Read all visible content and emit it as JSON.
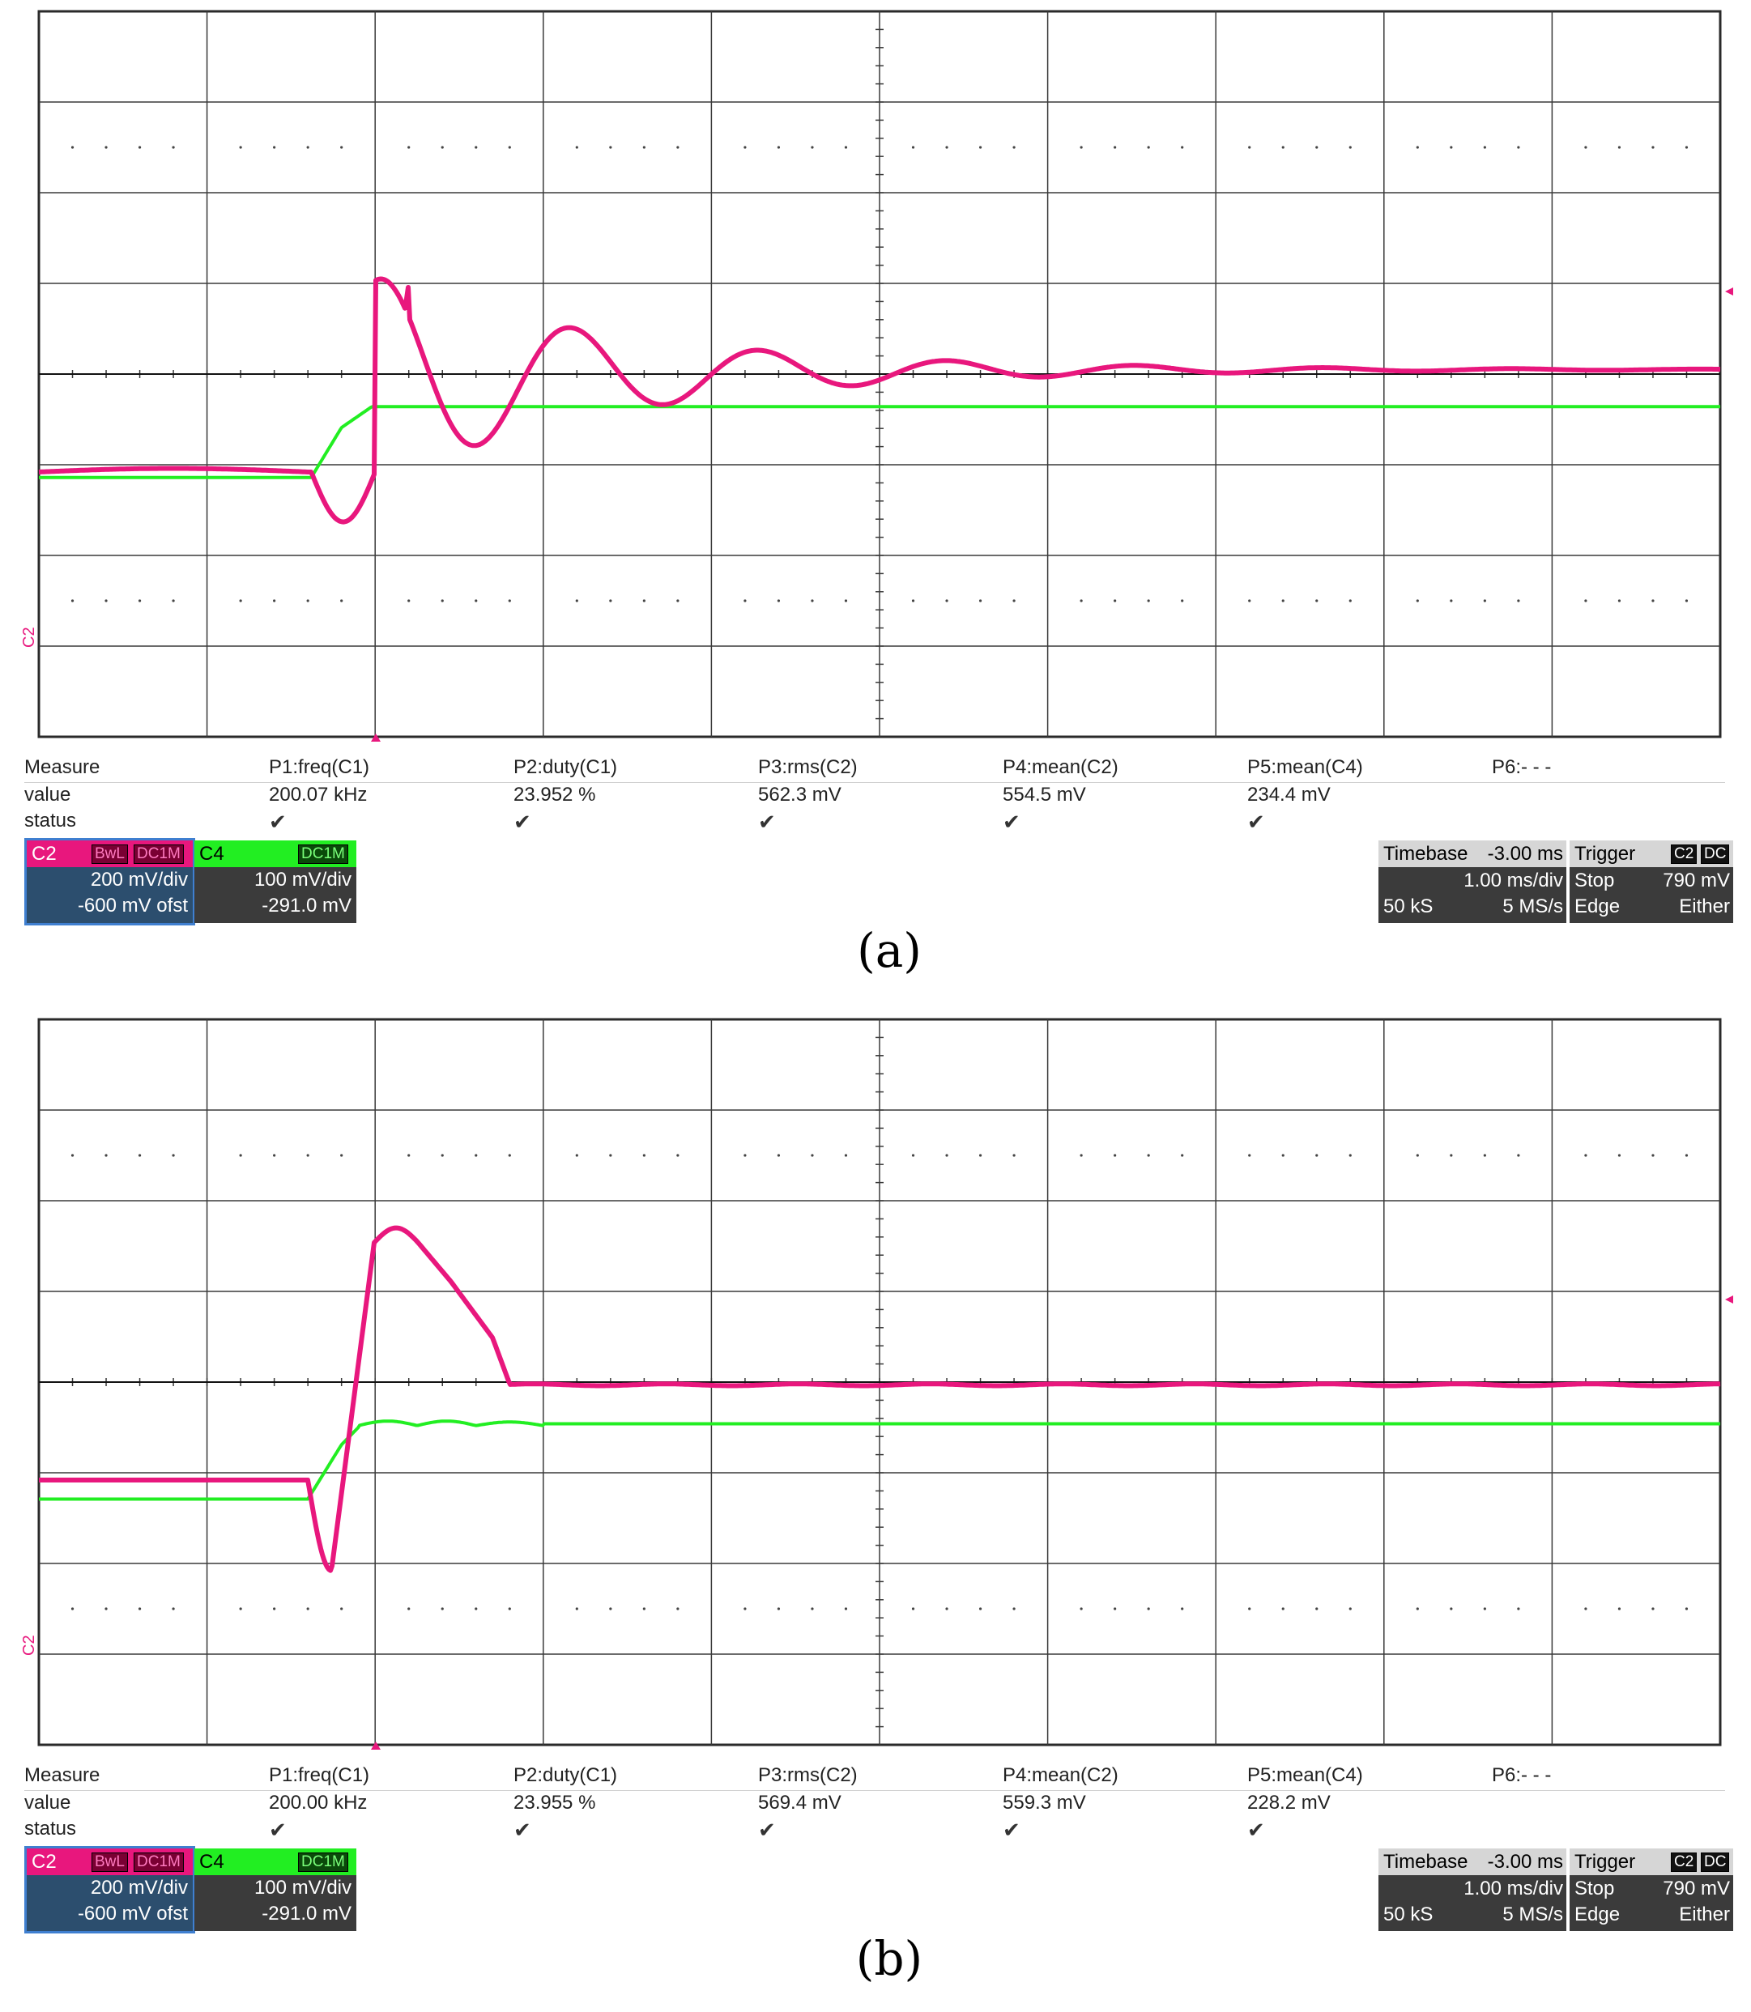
{
  "panels": [
    {
      "id": "a",
      "caption": "(a)",
      "trace_shape": "underdamped",
      "measure": {
        "row_labels": [
          "Measure",
          "value",
          "status"
        ],
        "params": [
          {
            "name": "P1:freq(C1)",
            "value": "200.07 kHz",
            "ok": true
          },
          {
            "name": "P2:duty(C1)",
            "value": "23.952 %",
            "ok": true
          },
          {
            "name": "P3:rms(C2)",
            "value": "562.3 mV",
            "ok": true
          },
          {
            "name": "P4:mean(C2)",
            "value": "554.5 mV",
            "ok": true
          },
          {
            "name": "P5:mean(C4)",
            "value": "234.4 mV",
            "ok": true
          },
          {
            "name": "P6:- - -",
            "value": "",
            "ok": false
          }
        ]
      },
      "channels": [
        {
          "name": "C2",
          "tags": [
            "BwL",
            "DC1M"
          ],
          "scale": "200 mV/div",
          "offset": "-600 mV ofst",
          "color": "#e8177d"
        },
        {
          "name": "C4",
          "tags": [
            "DC1M"
          ],
          "scale": "100 mV/div",
          "offset": "-291.0 mV",
          "color": "#22ee22"
        }
      ],
      "timebase": {
        "label": "Timebase",
        "delay": "-3.00 ms",
        "scale": "1.00 ms/div",
        "samples": "50 kS",
        "rate": "5 MS/s"
      },
      "trigger": {
        "label": "Trigger",
        "source": "C2",
        "coupling": "DC",
        "mode": "Stop",
        "level": "790 mV",
        "type": "Edge",
        "slope": "Either"
      },
      "side_label": "C2",
      "check_glyph": "✔"
    },
    {
      "id": "b",
      "caption": "(b)",
      "trace_shape": "damped",
      "measure": {
        "row_labels": [
          "Measure",
          "value",
          "status"
        ],
        "params": [
          {
            "name": "P1:freq(C1)",
            "value": "200.00 kHz",
            "ok": true
          },
          {
            "name": "P2:duty(C1)",
            "value": "23.955 %",
            "ok": true
          },
          {
            "name": "P3:rms(C2)",
            "value": "569.4 mV",
            "ok": true
          },
          {
            "name": "P4:mean(C2)",
            "value": "559.3 mV",
            "ok": true
          },
          {
            "name": "P5:mean(C4)",
            "value": "228.2 mV",
            "ok": true
          },
          {
            "name": "P6:- - -",
            "value": "",
            "ok": false
          }
        ]
      },
      "channels": [
        {
          "name": "C2",
          "tags": [
            "BwL",
            "DC1M"
          ],
          "scale": "200 mV/div",
          "offset": "-600 mV ofst",
          "color": "#e8177d"
        },
        {
          "name": "C4",
          "tags": [
            "DC1M"
          ],
          "scale": "100 mV/div",
          "offset": "-291.0 mV",
          "color": "#22ee22"
        }
      ],
      "timebase": {
        "label": "Timebase",
        "delay": "-3.00 ms",
        "scale": "1.00 ms/div",
        "samples": "50 kS",
        "rate": "5 MS/s"
      },
      "trigger": {
        "label": "Trigger",
        "source": "C2",
        "coupling": "DC",
        "mode": "Stop",
        "level": "790 mV",
        "type": "Edge",
        "slope": "Either"
      },
      "side_label": "C2",
      "check_glyph": "✔"
    }
  ]
}
